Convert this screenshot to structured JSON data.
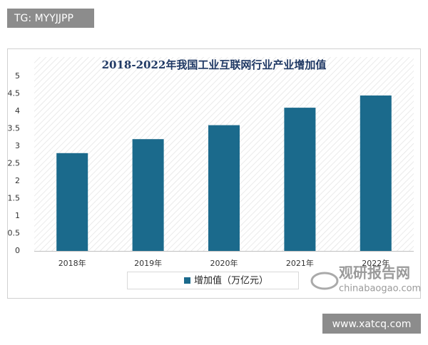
{
  "header_tag": "TG: MYYJJPP",
  "footer_url": "www.xatcq.com",
  "watermark": {
    "name": "观研报告网",
    "url": "chinabaogao.com"
  },
  "chart_data": {
    "type": "bar",
    "title": "2018-2022年我国工业互联网行业产业增加值",
    "categories": [
      "2018年",
      "2019年",
      "2020年",
      "2021年",
      "2022年"
    ],
    "series": [
      {
        "name": "增加值（万亿元）",
        "color": "#1b6a8c",
        "values": [
          2.8,
          3.2,
          3.6,
          4.1,
          4.45
        ]
      }
    ],
    "ylim": [
      0,
      5
    ],
    "yticks": [
      0,
      0.5,
      1,
      1.5,
      2,
      2.5,
      3,
      3.5,
      4,
      4.5,
      5
    ],
    "grid": false,
    "legend": "bottom"
  }
}
